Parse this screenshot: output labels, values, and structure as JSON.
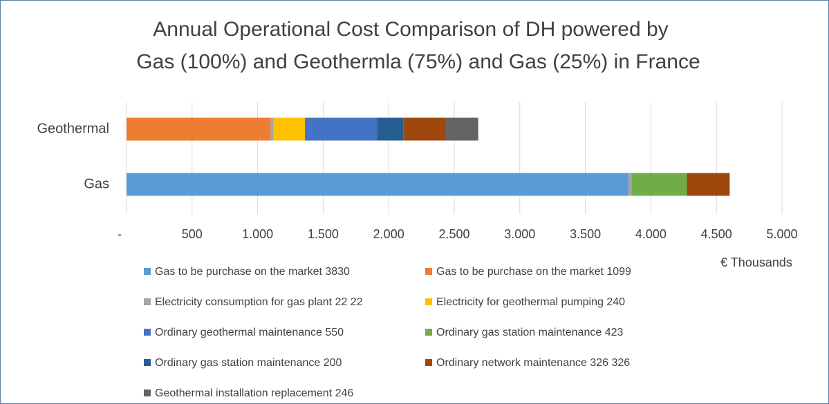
{
  "chart_data": {
    "type": "stacked_barh",
    "title": [
      "Annual Operational Cost Comparison of DH powered by",
      "Gas (100%) and Geothermla (75%) and Gas (25%) in France"
    ],
    "x_label": "€ Thousands",
    "categories": [
      "Geothermal",
      "Gas"
    ],
    "series": [
      {
        "name": "Gas to be purchase on the market 3830",
        "color": "#5b9bd5",
        "values": [
          null,
          3830
        ]
      },
      {
        "name": "Gas to be purchase on the market 1099",
        "color": "#ed7d31",
        "values": [
          1099,
          null
        ]
      },
      {
        "name": "Electricity consumption for gas plant 22 22",
        "color": "#a5a5a5",
        "values": [
          22,
          22
        ]
      },
      {
        "name": "Electricity for geothermal pumping 240",
        "color": "#ffc000",
        "values": [
          240,
          null
        ]
      },
      {
        "name": "Ordinary geothermal maintenance 550",
        "color": "#4472c4",
        "values": [
          550,
          null
        ]
      },
      {
        "name": "Ordinary gas station maintenance 423",
        "color": "#70ad47",
        "values": [
          null,
          423
        ]
      },
      {
        "name": "Ordinary gas station maintenance 200",
        "color": "#255e91",
        "values": [
          200,
          null
        ]
      },
      {
        "name": "Ordinary network maintenance 326 326",
        "color": "#9e480e",
        "values": [
          326,
          326
        ]
      },
      {
        "name": "Geothermal installation replacement 246",
        "color": "#636363",
        "values": [
          246,
          null
        ]
      }
    ],
    "xlim": [
      0,
      5000
    ],
    "xticks": [
      {
        "value": 0,
        "label": "-"
      },
      500,
      {
        "value": 1000,
        "label": "1.000"
      },
      {
        "value": 1500,
        "label": "1.500"
      },
      {
        "value": 2000,
        "label": "2.000"
      },
      {
        "value": 2500,
        "label": "2.500"
      },
      {
        "value": 3000,
        "label": "3.000"
      },
      {
        "value": 3500,
        "label": "3.500"
      },
      {
        "value": 4000,
        "label": "4.000"
      },
      {
        "value": 4500,
        "label": "4.500"
      },
      {
        "value": 5000,
        "label": "5.000"
      }
    ],
    "grid": true
  }
}
